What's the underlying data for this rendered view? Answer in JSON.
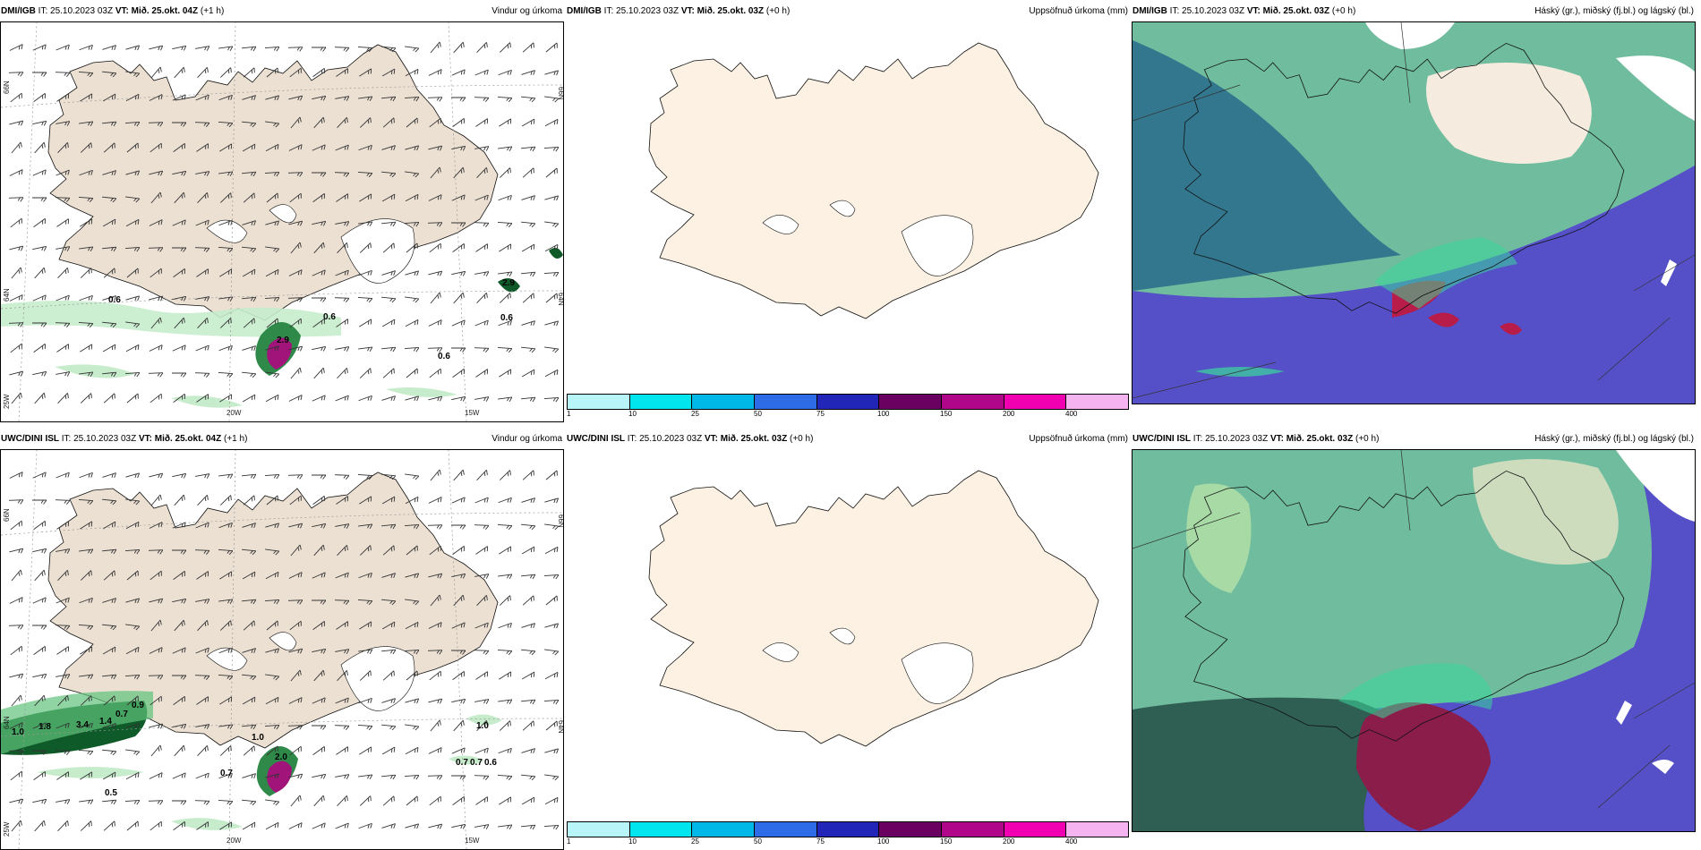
{
  "panels": [
    {
      "model": "DMI/IGB",
      "it": "IT: 25.10.2023 03Z",
      "vt_label": "VT:",
      "vt": "Mið. 25.okt. 04Z",
      "lead": "(+1 h)",
      "product": "Vindur og úrkoma"
    },
    {
      "model": "DMI/IGB",
      "it": "IT: 25.10.2023 03Z",
      "vt_label": "VT:",
      "vt": "Mið. 25.okt. 03Z",
      "lead": "(+0 h)",
      "product": "Uppsöfnuð úrkoma (mm)"
    },
    {
      "model": "DMI/IGB",
      "it": "IT: 25.10.2023 03Z",
      "vt_label": "VT:",
      "vt": "Mið. 25.okt. 03Z",
      "lead": "(+0 h)",
      "product": "Háský (gr.), miðský (fj.bl.) og lágský (bl.)"
    },
    {
      "model": "UWC/DINI ISL",
      "it": "IT: 25.10.2023 03Z",
      "vt_label": "VT:",
      "vt": "Mið. 25.okt. 04Z",
      "lead": "(+1 h)",
      "product": "Vindur og úrkoma"
    },
    {
      "model": "UWC/DINI ISL",
      "it": "IT: 25.10.2023 03Z",
      "vt_label": "VT:",
      "vt": "Mið. 25.okt. 03Z",
      "lead": "(+0 h)",
      "product": "Uppsöfnuð úrkoma (mm)"
    },
    {
      "model": "UWC/DINI ISL",
      "it": "IT: 25.10.2023 03Z",
      "vt_label": "VT:",
      "vt": "Mið. 25.okt. 03Z",
      "lead": "(+0 h)",
      "product": "Háský (gr.), miðský (fj.bl.) og lágský (bl.)"
    }
  ],
  "axes": {
    "lat_66": "66N",
    "lat_64": "64N",
    "lon_20": "20W",
    "lon_15": "15W",
    "lon_25": "25W"
  },
  "colorbar": {
    "labels": [
      "1",
      "10",
      "25",
      "50",
      "75",
      "100",
      "150",
      "200",
      "400"
    ],
    "colors": [
      "#b8f5f9",
      "#00e5ee",
      "#00b8e8",
      "#2e6be6",
      "#2226b8",
      "#6a0060",
      "#b0068a",
      "#f000b0",
      "#f5b3f0"
    ]
  },
  "precip_top": [
    "0.6",
    "0.6",
    "2.9",
    "0.6",
    "0.6",
    "2.9"
  ],
  "precip_bottom": [
    "1.0",
    "1.8",
    "3.4",
    "1.4",
    "0.7",
    "0.9",
    "0.7",
    "0.5",
    "1.0",
    "2.0",
    "0.7",
    "1.0",
    "0.7",
    "0.6"
  ],
  "colors": {
    "land": "#ece0d3",
    "land_bright": "#fdf1e3",
    "sea": "#ffffff",
    "precip_light": "#c7eccc",
    "precip_mid": "#5fc27a",
    "precip_dark": "#0e5a28",
    "high_cloud": "#6fbc9e",
    "mid_cloud": "#2b6f8c",
    "low_cloud": "#5550c8"
  }
}
